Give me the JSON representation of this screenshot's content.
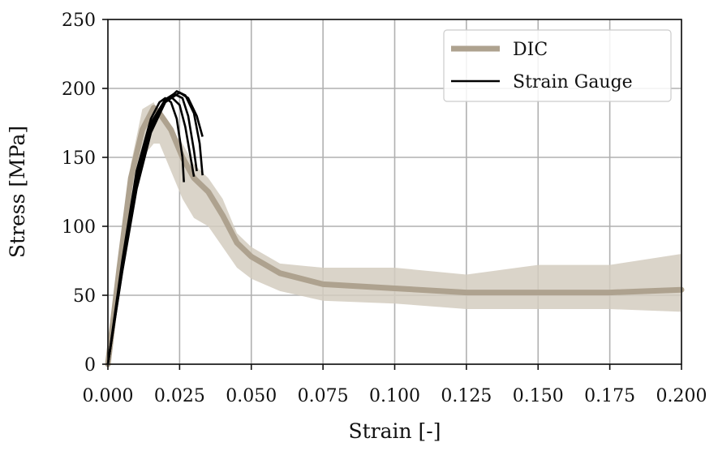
{
  "chart_data": {
    "type": "line",
    "title": "",
    "xlabel": "Strain [-]",
    "ylabel": "Stress [MPa]",
    "xlim": [
      0.0,
      0.2
    ],
    "ylim": [
      0,
      250
    ],
    "grid": true,
    "legend_position": "top-right",
    "x_ticks": [
      "0.000",
      "0.025",
      "0.050",
      "0.075",
      "0.100",
      "0.125",
      "0.150",
      "0.175",
      "0.200"
    ],
    "y_ticks": [
      "0",
      "50",
      "100",
      "150",
      "200",
      "250"
    ],
    "colors": {
      "dic": "#aea28f",
      "dic_band": "#d3ccbf",
      "strain_gauge": "#000000",
      "grid": "#b0b0b0"
    },
    "series": [
      {
        "name": "DIC",
        "style": "thick-line-with-band",
        "x": [
          0.0,
          0.004,
          0.008,
          0.012,
          0.016,
          0.018,
          0.022,
          0.026,
          0.03,
          0.035,
          0.04,
          0.045,
          0.05,
          0.06,
          0.075,
          0.1,
          0.125,
          0.15,
          0.175,
          0.2
        ],
        "values": [
          0,
          70,
          135,
          170,
          186,
          182,
          170,
          150,
          135,
          125,
          108,
          88,
          78,
          66,
          58,
          55,
          52,
          52,
          52,
          54
        ],
        "band_upper": [
          0,
          80,
          145,
          185,
          190,
          180,
          170,
          160,
          145,
          135,
          120,
          95,
          85,
          73,
          70,
          70,
          65,
          72,
          72,
          80
        ],
        "band_lower": [
          0,
          60,
          125,
          150,
          160,
          160,
          140,
          120,
          106,
          100,
          85,
          70,
          62,
          53,
          46,
          44,
          40,
          40,
          40,
          38
        ]
      },
      {
        "name": "Strain Gauge",
        "style": "thin-lines",
        "curves": [
          {
            "x": [
              0.0,
              0.005,
              0.01,
              0.015,
              0.018,
              0.02,
              0.022,
              0.024,
              0.026,
              0.0265
            ],
            "values": [
              0,
              75,
              140,
              178,
              190,
              193,
              190,
              178,
              150,
              132
            ]
          },
          {
            "x": [
              0.0,
              0.005,
              0.01,
              0.015,
              0.02,
              0.022,
              0.025,
              0.027,
              0.029,
              0.03
            ],
            "values": [
              0,
              72,
              135,
              175,
              192,
              194,
              188,
              172,
              148,
              136
            ]
          },
          {
            "x": [
              0.0,
              0.005,
              0.01,
              0.015,
              0.02,
              0.023,
              0.026,
              0.028,
              0.03,
              0.031
            ],
            "values": [
              0,
              70,
              132,
              172,
              192,
              196,
              193,
              180,
              155,
              140
            ]
          },
          {
            "x": [
              0.0,
              0.005,
              0.01,
              0.015,
              0.02,
              0.024,
              0.027,
              0.03,
              0.032,
              0.033
            ],
            "values": [
              0,
              68,
              128,
              170,
              190,
              198,
              195,
              182,
              160,
              137
            ]
          },
          {
            "x": [
              0.0,
              0.005,
              0.01,
              0.015,
              0.02,
              0.025,
              0.028,
              0.031,
              0.033
            ],
            "values": [
              0,
              67,
              127,
              168,
              190,
              197,
              193,
              180,
              165
            ]
          }
        ]
      }
    ]
  }
}
